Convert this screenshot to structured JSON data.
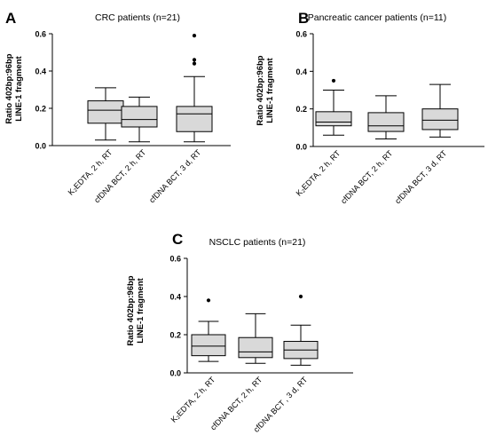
{
  "chart_data": [
    {
      "type": "boxplot",
      "panel_letter": "A",
      "title": "CRC patients (n=21)",
      "ylabel": "Ratio 402bp:96bp\nLINE-1 fragment",
      "ylim": [
        0,
        0.6
      ],
      "yticks": [
        "0.0",
        "0.2",
        "0.4",
        "0.6"
      ],
      "categories": [
        "K₂EDTA, 2 h, RT",
        "cfDNA BCT, 2 h, RT",
        "cfDNA BCT, 3 d, RT"
      ],
      "boxes": [
        {
          "min": 0.03,
          "q1": 0.12,
          "median": 0.19,
          "q3": 0.24,
          "max": 0.31,
          "outliers": []
        },
        {
          "min": 0.02,
          "q1": 0.1,
          "median": 0.14,
          "q3": 0.21,
          "max": 0.26,
          "outliers": []
        },
        {
          "min": 0.02,
          "q1": 0.075,
          "median": 0.17,
          "q3": 0.21,
          "max": 0.37,
          "outliers": [
            0.44,
            0.46,
            0.59
          ]
        }
      ]
    },
    {
      "type": "boxplot",
      "panel_letter": "B",
      "title": "Pancreatic cancer patients (n=11)",
      "ylabel": "Ratio 402bp:96bp\nLINE-1 fragment",
      "ylim": [
        0,
        0.6
      ],
      "yticks": [
        "0.0",
        "0.2",
        "0.4",
        "0.6"
      ],
      "categories": [
        "K₂EDTA, 2 h, RT",
        "cfDNA BCT, 2 h, RT",
        "cfDNA BCT, 3 d, RT"
      ],
      "boxes": [
        {
          "min": 0.06,
          "q1": 0.11,
          "median": 0.13,
          "q3": 0.185,
          "max": 0.3,
          "outliers": [
            0.35
          ]
        },
        {
          "min": 0.04,
          "q1": 0.08,
          "median": 0.11,
          "q3": 0.18,
          "max": 0.27,
          "outliers": []
        },
        {
          "min": 0.05,
          "q1": 0.09,
          "median": 0.14,
          "q3": 0.2,
          "max": 0.33,
          "outliers": []
        }
      ]
    },
    {
      "type": "boxplot",
      "panel_letter": "C",
      "title": "NSCLC patients (n=21)",
      "ylabel": "Ratio 402bp:96bp\nLINE-1 fragment",
      "ylim": [
        0,
        0.6
      ],
      "yticks": [
        "0.0",
        "0.2",
        "0.4",
        "0.6"
      ],
      "categories": [
        "K₂EDTA, 2 h, RT",
        "cfDNA BCT, 2 h, RT",
        "cfDNA BCT , 3 d, RT"
      ],
      "boxes": [
        {
          "min": 0.06,
          "q1": 0.09,
          "median": 0.14,
          "q3": 0.2,
          "max": 0.27,
          "outliers": [
            0.38
          ]
        },
        {
          "min": 0.05,
          "q1": 0.08,
          "median": 0.11,
          "q3": 0.185,
          "max": 0.31,
          "outliers": []
        },
        {
          "min": 0.04,
          "q1": 0.075,
          "median": 0.12,
          "q3": 0.165,
          "max": 0.25,
          "outliers": [
            0.4
          ]
        }
      ]
    }
  ],
  "colors": {
    "box_fill": "#d9d9d9",
    "line": "#000000",
    "outlier": "#000000"
  }
}
